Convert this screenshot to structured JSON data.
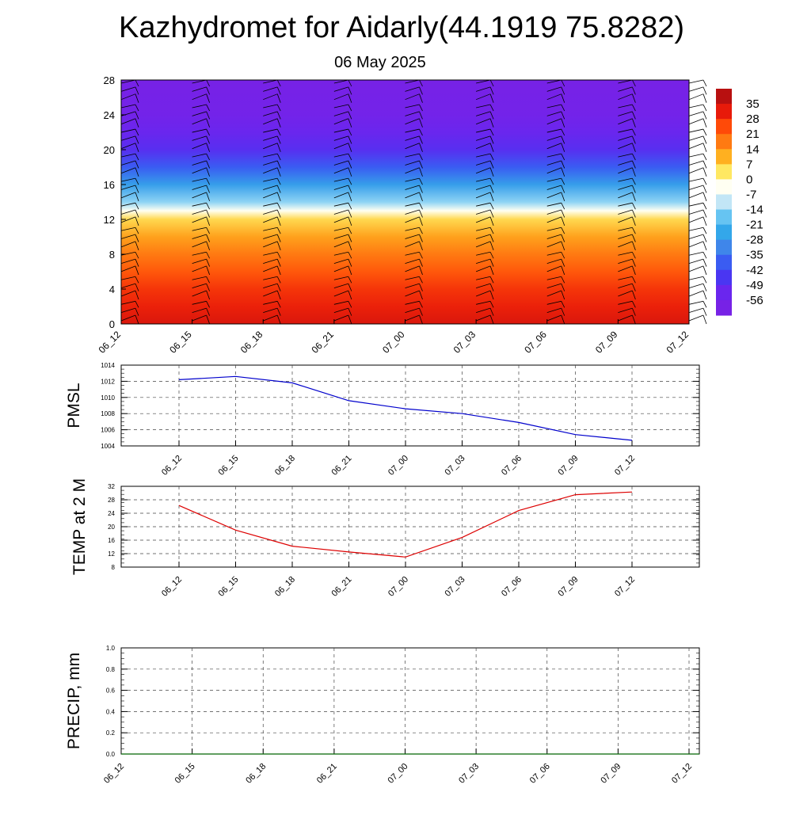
{
  "title": "Kazhydromet for Aidarly(44.1919 75.8282)",
  "subtitle": "06 May 2025",
  "chart_data": [
    {
      "type": "heatmap",
      "description_scope": "vertical cross-section, temperature shading with wind barbs",
      "x_categories": [
        "06_12",
        "06_15",
        "06_18",
        "06_21",
        "07_00",
        "07_03",
        "07_06",
        "07_09",
        "07_12"
      ],
      "ylim": [
        0,
        28
      ],
      "yticks": [
        0,
        4,
        8,
        12,
        16,
        20,
        24,
        28
      ],
      "colorbar_labels": [
        "35",
        "28",
        "21",
        "14",
        "7",
        "0",
        "-7",
        "-14",
        "-21",
        "-28",
        "-35",
        "-42",
        "-49",
        "-56"
      ],
      "temperature_profile": [
        {
          "y": 0,
          "value": 30
        },
        {
          "y": 2,
          "value": 27
        },
        {
          "y": 4,
          "value": 24
        },
        {
          "y": 6,
          "value": 19
        },
        {
          "y": 8,
          "value": 14
        },
        {
          "y": 10,
          "value": 9
        },
        {
          "y": 12,
          "value": 2
        },
        {
          "y": 13,
          "value": -7
        },
        {
          "y": 14,
          "value": -18
        },
        {
          "y": 16,
          "value": -30
        },
        {
          "y": 18,
          "value": -42
        },
        {
          "y": 20,
          "value": -52
        },
        {
          "y": 22,
          "value": -56
        },
        {
          "y": 24,
          "value": -60
        },
        {
          "y": 28,
          "value": -62
        }
      ],
      "grid": false
    },
    {
      "type": "line",
      "ylabel": "PMSL",
      "categories": [
        "06_12",
        "06_15",
        "06_18",
        "06_21",
        "07_00",
        "07_03",
        "07_06",
        "07_09",
        "07_12"
      ],
      "series": [
        {
          "color": "#0000cc",
          "values": [
            1012.2,
            1012.6,
            1011.8,
            1009.6,
            1008.6,
            1008.0,
            1006.9,
            1005.4,
            1004.7
          ]
        }
      ],
      "ylim": [
        1004,
        1014
      ],
      "yticks": [
        1004,
        1006,
        1008,
        1010,
        1012,
        1014
      ],
      "grid": true
    },
    {
      "type": "line",
      "ylabel": "TEMP at 2 M",
      "categories": [
        "06_12",
        "06_15",
        "06_18",
        "06_21",
        "07_00",
        "07_03",
        "07_06",
        "07_09",
        "07_12"
      ],
      "series": [
        {
          "color": "#dd0000",
          "values": [
            26.3,
            19.0,
            14.2,
            12.5,
            11.0,
            16.8,
            24.8,
            29.5,
            30.3
          ]
        }
      ],
      "ylim": [
        8,
        32
      ],
      "yticks": [
        8,
        12,
        16,
        20,
        24,
        28,
        32
      ],
      "grid": true
    },
    {
      "type": "line",
      "ylabel": "PRECIP, mm",
      "categories": [
        "06_12",
        "06_15",
        "06_18",
        "06_21",
        "07_00",
        "07_03",
        "07_06",
        "07_09",
        "07_12"
      ],
      "series": [
        {
          "color": "#006600",
          "values": [
            0,
            0,
            0,
            0,
            0,
            0,
            0,
            0,
            0
          ]
        }
      ],
      "ylim": [
        0.0,
        1.0
      ],
      "yticks": [
        "0.0",
        "0.2",
        "0.4",
        "0.6",
        "0.8",
        "1.0"
      ],
      "grid": true
    }
  ]
}
